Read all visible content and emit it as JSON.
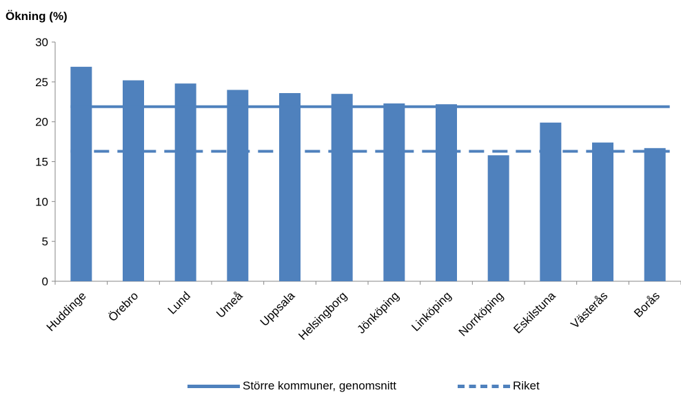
{
  "chart_data": {
    "type": "bar",
    "ylabel": "Ökning (%)",
    "xlabel": "",
    "title": "",
    "ylim": [
      0,
      30
    ],
    "yticks": [
      0,
      5,
      10,
      15,
      20,
      25,
      30
    ],
    "categories": [
      "Huddinge",
      "Örebro",
      "Lund",
      "Umeå",
      "Uppsala",
      "Helsingborg",
      "Jönköping",
      "Linköping",
      "Norrköping",
      "Eskilstuna",
      "Västerås",
      "Borås"
    ],
    "values": [
      26.9,
      25.2,
      24.8,
      24.0,
      23.6,
      23.5,
      22.3,
      22.2,
      15.8,
      19.9,
      17.4,
      16.7
    ],
    "bar_color": "#4F81BD",
    "reference_lines": [
      {
        "name": "Större kommuner, genomsnitt",
        "value": 21.9,
        "style": "solid",
        "color": "#4F81BD"
      },
      {
        "name": "Riket",
        "value": 16.3,
        "style": "dashed",
        "color": "#4F81BD"
      }
    ],
    "legend_position": "bottom",
    "grid": false
  }
}
